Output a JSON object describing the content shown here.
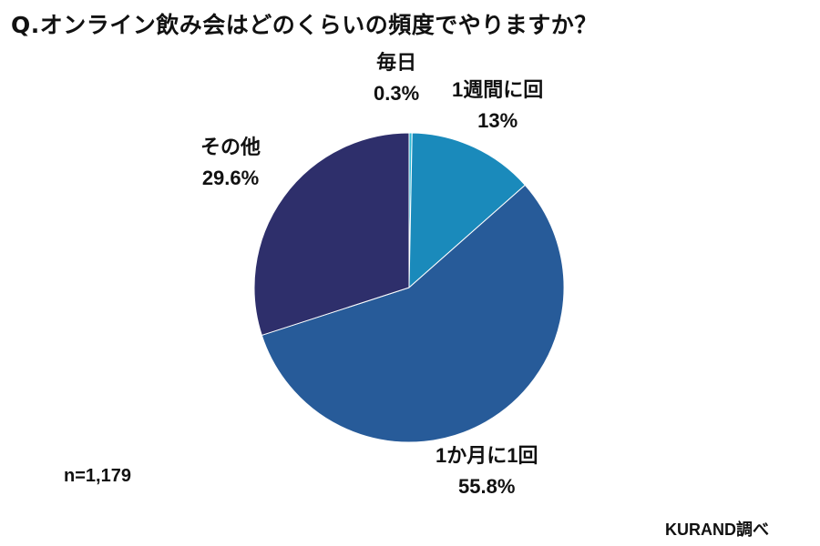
{
  "title": "Q.オンライン飲み会はどのくらいの頻度でやりますか？",
  "sample_note": "n=1,179",
  "source_note": "KURAND調べ",
  "chart_data": {
    "type": "pie",
    "title": "Q.オンライン飲み会はどのくらいの頻度でやりますか？",
    "slices": [
      {
        "label": "毎日",
        "value": 0.3,
        "value_label": "0.3%",
        "color": "#2bb8d6"
      },
      {
        "label": "1週間に回",
        "value": 13,
        "value_label": "13%",
        "color": "#1a8abb"
      },
      {
        "label": "1か月に1回",
        "value": 55.8,
        "value_label": "55.8%",
        "color": "#275b99"
      },
      {
        "label": "その他",
        "value": 29.6,
        "value_label": "29.6%",
        "color": "#2e2f6b"
      }
    ],
    "start_angle": "12 o'clock",
    "direction": "clockwise",
    "legend": "none"
  }
}
